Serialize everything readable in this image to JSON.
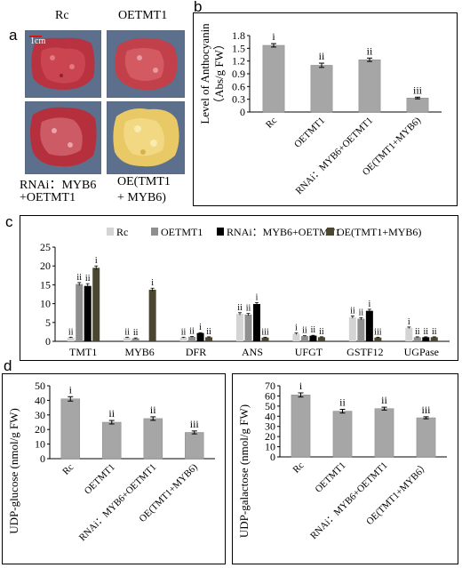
{
  "panels": {
    "a": "a",
    "b": "b",
    "c": "c",
    "d": "d"
  },
  "photos": {
    "label_rc": "Rc",
    "label_oetmt1": "OETMT1",
    "scale_bar": "1cm",
    "label_rnai_line1": "RNAi：MYB6",
    "label_rnai_line2": "+OETMT1",
    "label_oe_line1": "OE(TMT1",
    "label_oe_line2": "+ MYB6)",
    "colors": {
      "background": "#5c6f8c",
      "red_callus": "#b8323f",
      "yellow_callus": "#e9c965"
    }
  },
  "chart_data": [
    {
      "id": "b",
      "type": "bar",
      "ylabel_line1": "Level of Anthocyanin",
      "ylabel_line2": "（Abs/g FW）",
      "categories": [
        "Rc",
        "OETMT1",
        "RNAi：MYB6+OETMT1",
        "OE(TMT1+MYB6)"
      ],
      "values": [
        1.57,
        1.1,
        1.23,
        0.33
      ],
      "errors": [
        0.04,
        0.05,
        0.04,
        0.02
      ],
      "significance": [
        "i",
        "ii",
        "ii",
        "iii"
      ],
      "ylim": [
        0,
        1.8
      ],
      "yticks": [
        "0",
        "0.3",
        "0.6",
        "0.9",
        "1.2",
        "1.5",
        "1.8"
      ],
      "bar_color": "#a6a6a6"
    },
    {
      "id": "c",
      "type": "bar",
      "categories": [
        "TMT1",
        "MYB6",
        "DFR",
        "ANS",
        "UFGT",
        "GSTF12",
        "UGPase"
      ],
      "series": [
        {
          "name": "Rc",
          "color": "#d4d4d4",
          "values": [
            1.0,
            1.0,
            1.0,
            7.3,
            2.0,
            6.4,
            3.6
          ],
          "errors": [
            0.1,
            0.1,
            0.1,
            0.3,
            0.2,
            0.3,
            0.2
          ]
        },
        {
          "name": "OETMT1",
          "color": "#8f8f8f",
          "values": [
            15.2,
            0.8,
            1.2,
            7.1,
            1.4,
            6.0,
            1.1
          ],
          "errors": [
            0.4,
            0.1,
            0.1,
            0.3,
            0.1,
            0.3,
            0.1
          ]
        },
        {
          "name": "RNAi：MYB6+OETMT1",
          "color": "#000000",
          "values": [
            14.7,
            0.0,
            2.2,
            9.9,
            1.5,
            8.1,
            1.1
          ],
          "errors": [
            0.6,
            0.0,
            0.1,
            0.4,
            0.1,
            0.4,
            0.1
          ]
        },
        {
          "name": "OE(TMT1+MYB6)",
          "color": "#4a4632",
          "values": [
            19.5,
            13.7,
            1.1,
            1.0,
            1.1,
            1.0,
            1.1
          ],
          "errors": [
            0.5,
            0.4,
            0.1,
            0.1,
            0.1,
            0.1,
            0.1
          ]
        }
      ],
      "significance": [
        [
          "ii",
          "ii",
          "ii",
          "i"
        ],
        [
          "ii",
          "ii",
          "",
          "i"
        ],
        [
          "ii",
          "ii",
          "i",
          "ii"
        ],
        [
          "ii",
          "ii",
          "i",
          "iii"
        ],
        [
          "i",
          "ii",
          "ii",
          "ii"
        ],
        [
          "ii",
          "ii",
          "i",
          "iii"
        ],
        [
          "i",
          "ii",
          "ii",
          "ii"
        ]
      ],
      "ylim": [
        0,
        25
      ],
      "yticks": [
        "0",
        "5",
        "10",
        "15",
        "20",
        "25"
      ],
      "legend_position": "top"
    },
    {
      "id": "d-left",
      "type": "bar",
      "ylabel": "UDP-glucose (nmol/g FW)",
      "categories": [
        "Rc",
        "OETMT1",
        "RNAi：MYB6+OETMT1",
        "OE(TMT1+MYB6)"
      ],
      "values": [
        41,
        25,
        27.5,
        18
      ],
      "errors": [
        1.5,
        1.2,
        1.2,
        1.0
      ],
      "significance": [
        "i",
        "ii",
        "ii",
        "iii"
      ],
      "ylim": [
        0,
        50
      ],
      "yticks": [
        "0",
        "10",
        "20",
        "30",
        "40",
        "50"
      ],
      "bar_color": "#a6a6a6"
    },
    {
      "id": "d-right",
      "type": "bar",
      "ylabel": "UDP-galactose (nmol/g FW)",
      "categories": [
        "Rc",
        "OETMT1",
        "RNAi：MYB6+OETMT1",
        "OE(TMT1+MYB6）"
      ],
      "values": [
        61,
        45,
        47.5,
        38.5
      ],
      "errors": [
        2.0,
        1.8,
        1.4,
        1.0
      ],
      "significance": [
        "i",
        "ii",
        "ii",
        "iii"
      ],
      "ylim": [
        0,
        70
      ],
      "yticks": [
        "0",
        "10",
        "20",
        "30",
        "40",
        "50",
        "60",
        "70"
      ],
      "bar_color": "#a6a6a6"
    }
  ]
}
